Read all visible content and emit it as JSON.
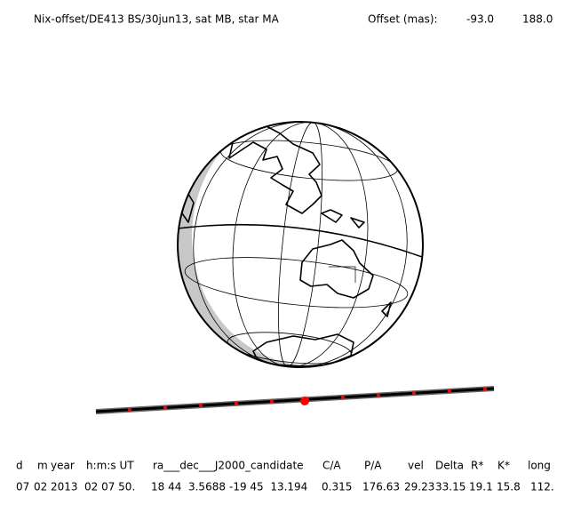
{
  "header": {
    "title": "Nix-offset/DE413 BS/30jun13, sat MB, star MA",
    "offset_label": "Offset (mas):",
    "offset_values": [
      "-93.0",
      "188.0"
    ]
  },
  "table": {
    "columns": [
      "d",
      "m",
      "year",
      "h:m:s UT",
      "ra___dec___J2000_candidate",
      "C/A",
      "P/A",
      "vel",
      "Delta",
      "R*",
      "K*",
      "long"
    ],
    "rows": [
      [
        "07",
        "02",
        "2013",
        "02 07 50.",
        "18 44  3.5688",
        "-19 45  13.194",
        "0.315",
        "176.63",
        "29.23",
        "33.15",
        "19.1",
        "15.8",
        "112."
      ]
    ]
  }
}
